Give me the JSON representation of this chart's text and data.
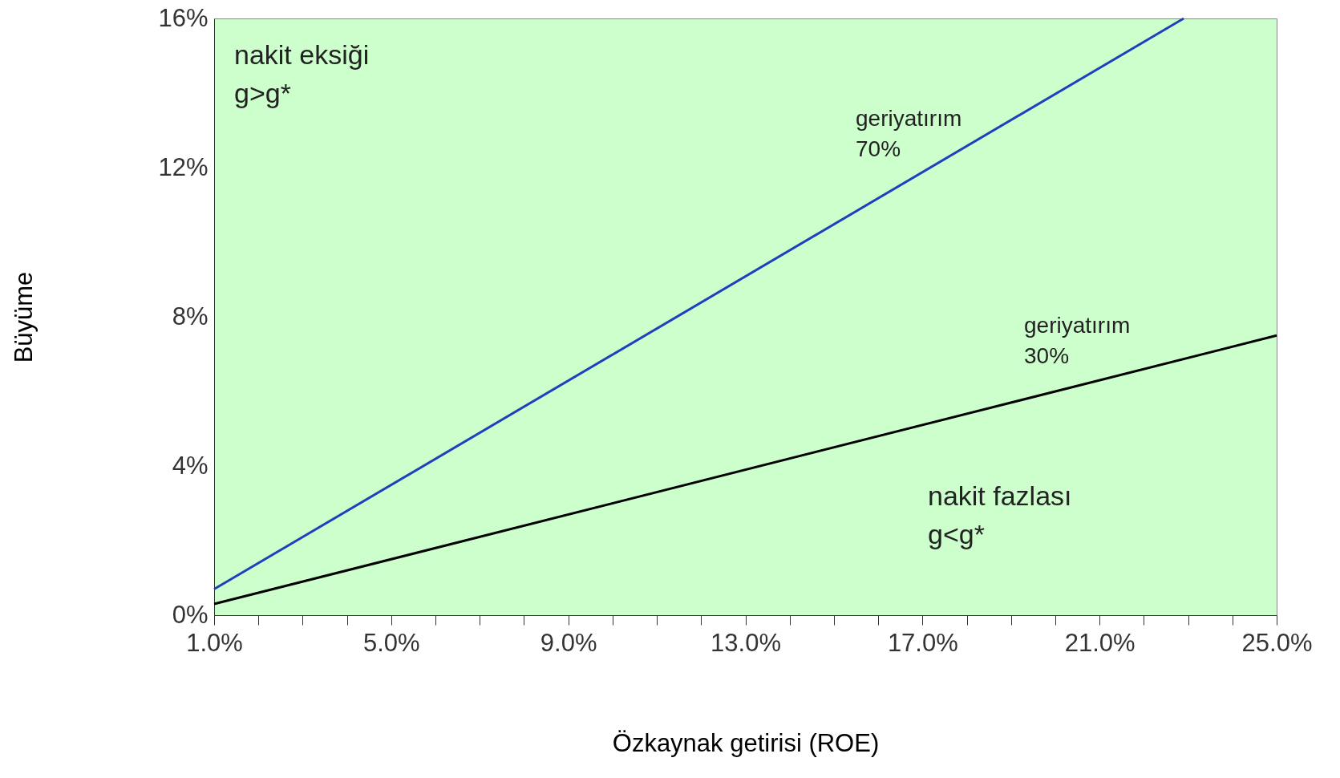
{
  "chart_data": {
    "type": "line",
    "xlabel": "Özkaynak getirisi (ROE)",
    "ylabel": "Büyüme",
    "xlim": [
      1,
      25
    ],
    "ylim": [
      0,
      16
    ],
    "xticks": [
      {
        "value": 1,
        "label": "1.0%"
      },
      {
        "value": 2,
        "label": null
      },
      {
        "value": 3,
        "label": null
      },
      {
        "value": 4,
        "label": null
      },
      {
        "value": 5,
        "label": "5.0%"
      },
      {
        "value": 6,
        "label": null
      },
      {
        "value": 7,
        "label": null
      },
      {
        "value": 8,
        "label": null
      },
      {
        "value": 9,
        "label": "9.0%"
      },
      {
        "value": 10,
        "label": null
      },
      {
        "value": 11,
        "label": null
      },
      {
        "value": 12,
        "label": null
      },
      {
        "value": 13,
        "label": "13.0%"
      },
      {
        "value": 14,
        "label": null
      },
      {
        "value": 15,
        "label": null
      },
      {
        "value": 16,
        "label": null
      },
      {
        "value": 17,
        "label": "17.0%"
      },
      {
        "value": 18,
        "label": null
      },
      {
        "value": 19,
        "label": null
      },
      {
        "value": 20,
        "label": null
      },
      {
        "value": 21,
        "label": "21.0%"
      },
      {
        "value": 22,
        "label": null
      },
      {
        "value": 23,
        "label": null
      },
      {
        "value": 24,
        "label": null
      },
      {
        "value": 25,
        "label": "25.0%"
      }
    ],
    "yticks": [
      {
        "value": 0,
        "label": "0%"
      },
      {
        "value": 4,
        "label": "4%"
      },
      {
        "value": 8,
        "label": "8%"
      },
      {
        "value": 12,
        "label": "12%"
      },
      {
        "value": 16,
        "label": "16%"
      }
    ],
    "series": [
      {
        "color": "#1f3fbf",
        "x": [
          1,
          22.9
        ],
        "values": [
          0.7,
          16
        ]
      },
      {
        "color": "#000000",
        "x": [
          1,
          25
        ],
        "values": [
          0.3,
          7.5
        ]
      }
    ],
    "annotations": [
      "nakit eksiği",
      "g>g*",
      "nakit fazlası",
      "g<g*",
      "geriyatırım\n70%",
      "geriyatırım\n30%"
    ],
    "grid": false,
    "legend": false,
    "marker": "none",
    "line_style": "solid"
  }
}
